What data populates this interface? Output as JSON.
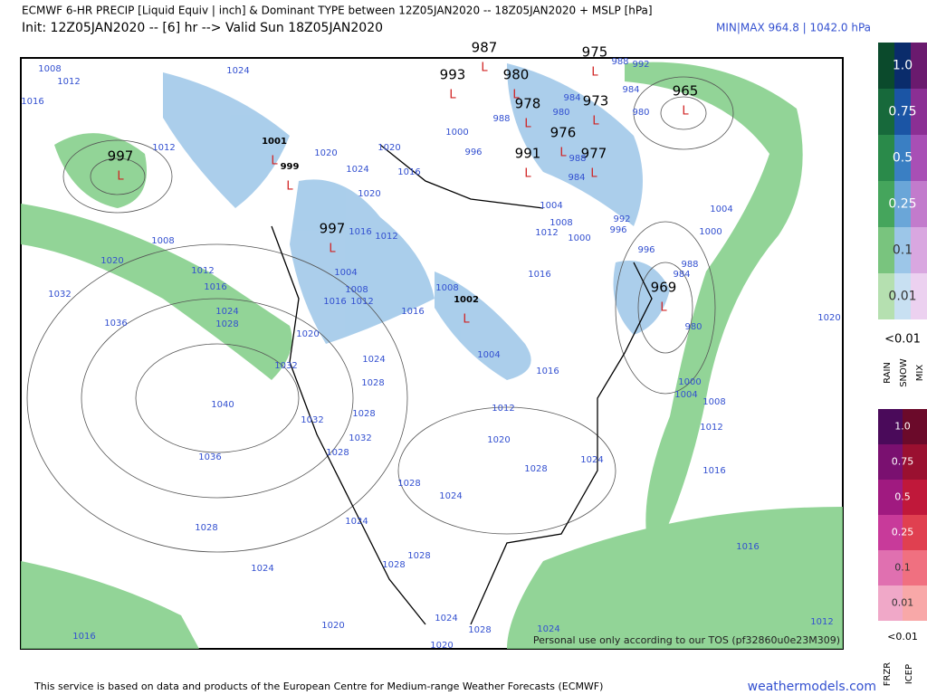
{
  "header": {
    "title": "ECMWF 6-HR PRECIP [Liquid Equiv | inch] & Dominant TYPE between 12Z05JAN2020 -- 18Z05JAN2020 + MSLP [hPa]",
    "init": "Init: 12Z05JAN2020 -- [6] hr --> Valid Sun 18Z05JAN2020",
    "minmax": "MIN|MAX 964.8 | 1042.0 hPa"
  },
  "legend": {
    "precip_scale": [
      "1.0",
      "0.75",
      "0.5",
      "0.25",
      "0.1",
      "0.01"
    ],
    "precip_below": "<0.01",
    "precip_types": [
      "RAIN",
      "SNOW",
      "MIX"
    ],
    "ice_scale": [
      "1.0",
      "0.75",
      "0.5",
      "0.25",
      "0.1",
      "0.01"
    ],
    "ice_below": "<0.01",
    "ice_types": [
      "FRZR",
      "ICEP"
    ]
  },
  "map": {
    "watermark": "Personal use only according to our TOS (pf32860u0e23M309)",
    "low_labels": [
      "997",
      "987",
      "993",
      "980",
      "975",
      "965",
      "973",
      "978",
      "976",
      "991",
      "977",
      "997",
      "969",
      "1001",
      "999",
      "1002"
    ],
    "isobar_labels": [
      "1008",
      "1012",
      "1016",
      "1024",
      "1012",
      "1020",
      "1020",
      "1016",
      "1024",
      "1020",
      "1016",
      "1012",
      "1004",
      "1008",
      "1012",
      "1016",
      "1016",
      "1008",
      "1004",
      "1016",
      "1012",
      "1020",
      "1028",
      "1024",
      "1024",
      "1028",
      "1024",
      "1028",
      "1028",
      "1024",
      "1028",
      "1036",
      "1040",
      "1036",
      "1032",
      "1020",
      "1008",
      "1012",
      "1016",
      "1024",
      "1028",
      "1020",
      "1032",
      "1024",
      "1028",
      "1032",
      "1028",
      "1032",
      "1028",
      "1004",
      "1008",
      "1012",
      "1000",
      "992",
      "996",
      "996",
      "1016",
      "1004",
      "1000",
      "988",
      "984",
      "980",
      "1020",
      "1000",
      "1004",
      "1008",
      "1012",
      "1016",
      "1016",
      "1020",
      "1016",
      "1024",
      "1028",
      "1020",
      "1024",
      "1012",
      "980",
      "984",
      "992",
      "988",
      "984",
      "980",
      "988",
      "1000",
      "996",
      "988",
      "984"
    ]
  },
  "footer": {
    "credit": "This service is based on data and products of the European Centre for Medium-range Weather Forecasts (ECMWF)",
    "site": "weathermodels.com"
  }
}
